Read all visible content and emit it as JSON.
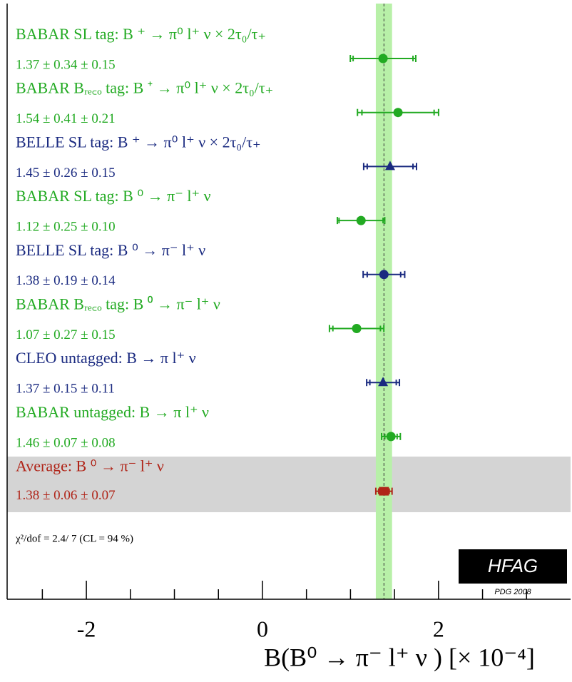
{
  "chart_data": {
    "type": "forest",
    "xlabel": "B(B⁰ → π⁻ l⁺ ν ) [× 10⁻⁴]",
    "xlim": [
      -2.9,
      3.5
    ],
    "xticks": [
      -2,
      0,
      2
    ],
    "xminorticks": [
      -2.5,
      -1.5,
      -1,
      -0.5,
      0.5,
      1,
      1.5,
      2.5,
      3
    ],
    "measurements": [
      {
        "name": "BABAR SL tag: B ⁺ → π⁰ l⁺ ν × 2τ₀/τ₊",
        "value_label": "1.37 ± 0.34 ± 0.15",
        "value": 1.37,
        "stat": 0.34,
        "syst": 0.15,
        "color": "#22aa22",
        "marker": "circle"
      },
      {
        "name": "BABAR Bᵣₑ꜀ₒ tag: B ⁺ → π⁰ l⁺ ν × 2τ₀/τ₊",
        "value_label": "1.54 ± 0.41 ± 0.21",
        "value": 1.54,
        "stat": 0.41,
        "syst": 0.21,
        "color": "#22aa22",
        "marker": "circle"
      },
      {
        "name": "BELLE SL tag: B ⁺ → π⁰ l⁺ ν × 2τ₀/τ₊",
        "value_label": "1.45 ± 0.26 ± 0.15",
        "value": 1.45,
        "stat": 0.26,
        "syst": 0.15,
        "color": "#1a2a80",
        "marker": "triangle"
      },
      {
        "name": "BABAR SL tag: B ⁰ → π⁻ l⁺ ν",
        "value_label": "1.12 ± 0.25 ± 0.10",
        "value": 1.12,
        "stat": 0.25,
        "syst": 0.1,
        "color": "#22aa22",
        "marker": "circle"
      },
      {
        "name": "BELLE SL tag: B ⁰ → π⁻ l⁺ ν",
        "value_label": "1.38 ± 0.19 ± 0.14",
        "value": 1.38,
        "stat": 0.19,
        "syst": 0.14,
        "color": "#1a2a80",
        "marker": "circle"
      },
      {
        "name": "BABAR Bᵣₑ꜀ₒ tag: B ⁰ → π⁻ l⁺ ν",
        "value_label": "1.07 ± 0.27 ± 0.15",
        "value": 1.07,
        "stat": 0.27,
        "syst": 0.15,
        "color": "#22aa22",
        "marker": "circle"
      },
      {
        "name": "CLEO untagged: B → π l⁺ ν",
        "value_label": "1.37 ± 0.15 ± 0.11",
        "value": 1.37,
        "stat": 0.15,
        "syst": 0.11,
        "color": "#1a2a80",
        "marker": "triangle"
      },
      {
        "name": "BABAR untagged: B → π l⁺ ν",
        "value_label": "1.46 ± 0.07 ± 0.08",
        "value": 1.46,
        "stat": 0.07,
        "syst": 0.08,
        "color": "#22aa22",
        "marker": "circle"
      }
    ],
    "average": {
      "name": "Average: B ⁰ → π⁻ l⁺ ν",
      "value_label": "1.38 ± 0.06 ± 0.07",
      "value": 1.38,
      "stat": 0.06,
      "syst": 0.07,
      "color": "#b02418",
      "band_color": "#b8f0a8"
    },
    "annotation": "χ²/dof = 2.4/ 7 (CL = 94 %)",
    "logo": "HFAG",
    "source": "PDG 2008"
  }
}
